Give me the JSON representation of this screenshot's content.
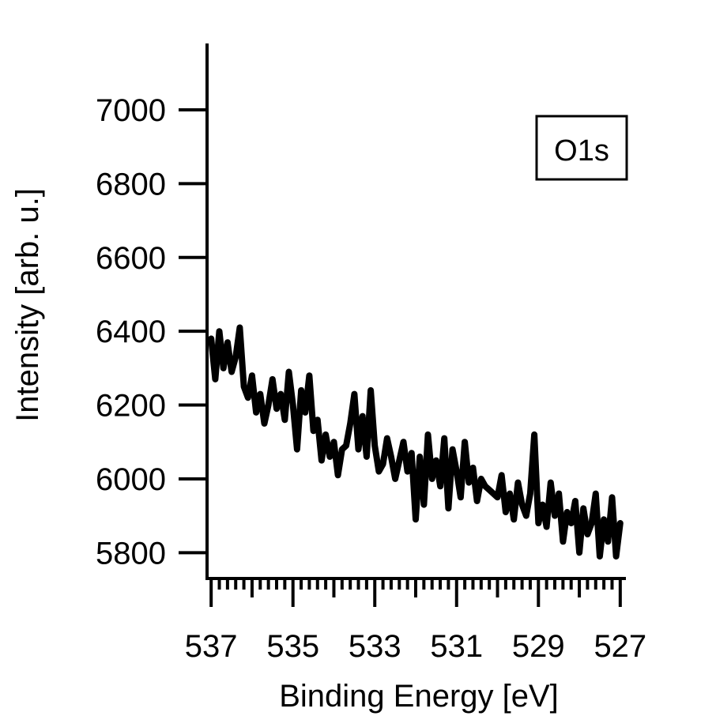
{
  "chart_data": {
    "type": "line",
    "xlabel": "Binding Energy [eV]",
    "ylabel": "Intensity [arb. u.]",
    "xlim": [
      537.1,
      526.9
    ],
    "x_reversed": true,
    "ylim": [
      5730,
      7180
    ],
    "x_ticks": [
      537,
      535,
      533,
      531,
      529,
      527
    ],
    "y_ticks": [
      5800,
      6000,
      6200,
      6400,
      6600,
      6800,
      7000
    ],
    "legend": "O1s",
    "legend_position": "top-right",
    "grid": false,
    "series_color": "#000000",
    "series": [
      {
        "x": [
          537.0,
          536.9,
          536.8,
          536.7,
          536.6,
          536.5,
          536.4,
          536.3,
          536.2,
          536.1,
          536.0,
          535.9,
          535.8,
          535.7,
          535.6,
          535.5,
          535.4,
          535.3,
          535.2,
          535.1,
          535.0,
          534.9,
          534.8,
          534.7,
          534.6,
          534.5,
          534.4,
          534.3,
          534.2,
          534.1,
          534.0,
          533.9,
          533.8,
          533.7,
          533.6,
          533.5,
          533.4,
          533.3,
          533.2,
          533.1,
          533.0,
          532.9,
          532.8,
          532.7,
          532.6,
          532.5,
          532.4,
          532.3,
          532.2,
          532.1,
          532.0,
          531.9,
          531.8,
          531.7,
          531.6,
          531.5,
          531.4,
          531.3,
          531.2,
          531.1,
          531.0,
          530.9,
          530.8,
          530.7,
          530.6,
          530.5,
          530.4,
          530.3,
          530.2,
          530.1,
          530.0,
          529.9,
          529.8,
          529.7,
          529.6,
          529.5,
          529.4,
          529.3,
          529.2,
          529.1,
          529.0,
          528.9,
          528.8,
          528.7,
          528.6,
          528.5,
          528.4,
          528.3,
          528.2,
          528.1,
          528.0,
          527.9,
          527.8,
          527.7,
          527.6,
          527.5,
          527.4,
          527.3,
          527.2,
          527.1,
          527.0
        ],
        "y": [
          6380,
          6270,
          6400,
          6300,
          6370,
          6290,
          6330,
          6410,
          6250,
          6220,
          6280,
          6180,
          6230,
          6150,
          6200,
          6270,
          6190,
          6230,
          6160,
          6290,
          6200,
          6080,
          6240,
          6180,
          6280,
          6130,
          6160,
          6050,
          6120,
          6060,
          6100,
          6010,
          6080,
          6090,
          6150,
          6230,
          6080,
          6170,
          6060,
          6240,
          6090,
          6020,
          6040,
          6110,
          6060,
          6000,
          6050,
          6100,
          6020,
          6070,
          5890,
          6060,
          5930,
          6120,
          6000,
          6050,
          5980,
          6110,
          5920,
          6080,
          6020,
          5950,
          6100,
          5990,
          6030,
          5940,
          6000,
          5980,
          5970,
          5960,
          5950,
          6010,
          5910,
          5960,
          5890,
          5990,
          5930,
          5900,
          5960,
          6120,
          5880,
          5930,
          5870,
          5990,
          5900,
          5960,
          5830,
          5910,
          5880,
          5940,
          5800,
          5920,
          5850,
          5880,
          5960,
          5790,
          5890,
          5830,
          5950,
          5790,
          5880
        ]
      }
    ]
  }
}
